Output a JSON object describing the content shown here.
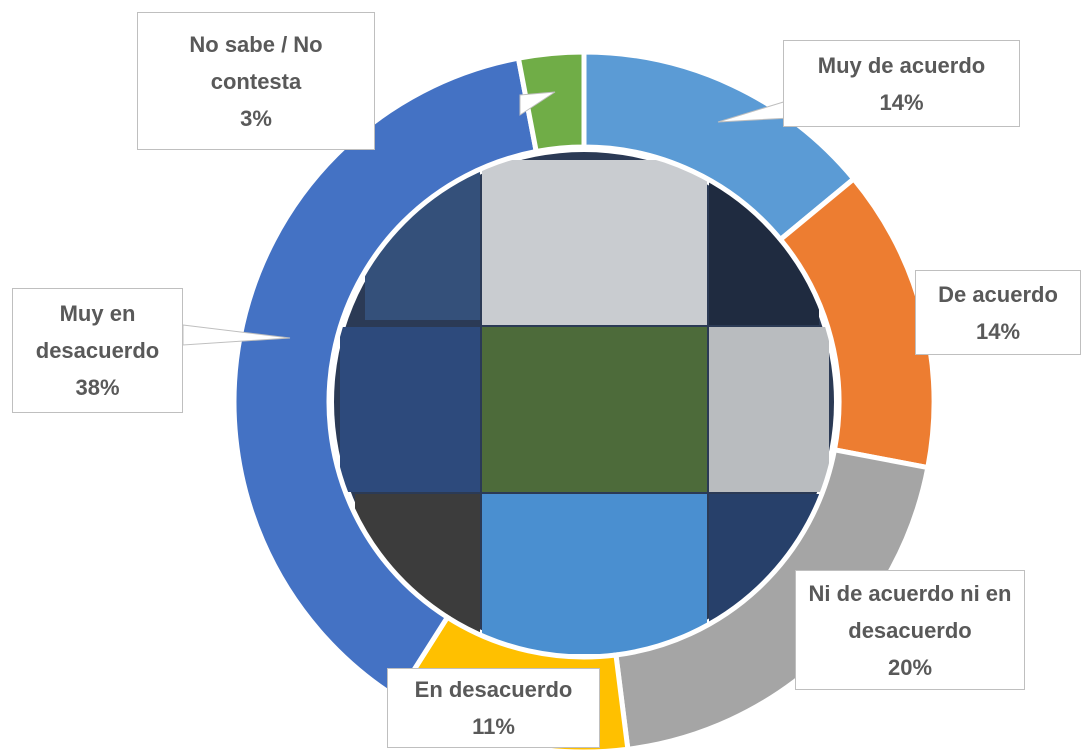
{
  "chart_data": {
    "type": "donut",
    "categories": [
      "Muy de acuerdo",
      "De acuerdo",
      "Ni de acuerdo ni en desacuerdo",
      "En desacuerdo",
      "Muy en desacuerdo",
      "No sabe / No contesta"
    ],
    "values": [
      14,
      14,
      20,
      11,
      38,
      3
    ],
    "value_labels": [
      "14%",
      "14%",
      "20%",
      "11%",
      "38%",
      "3%"
    ],
    "colors": [
      "#5b9bd5",
      "#ed7d31",
      "#a5a5a5",
      "#ffc000",
      "#4472c4",
      "#70ad47"
    ]
  }
}
